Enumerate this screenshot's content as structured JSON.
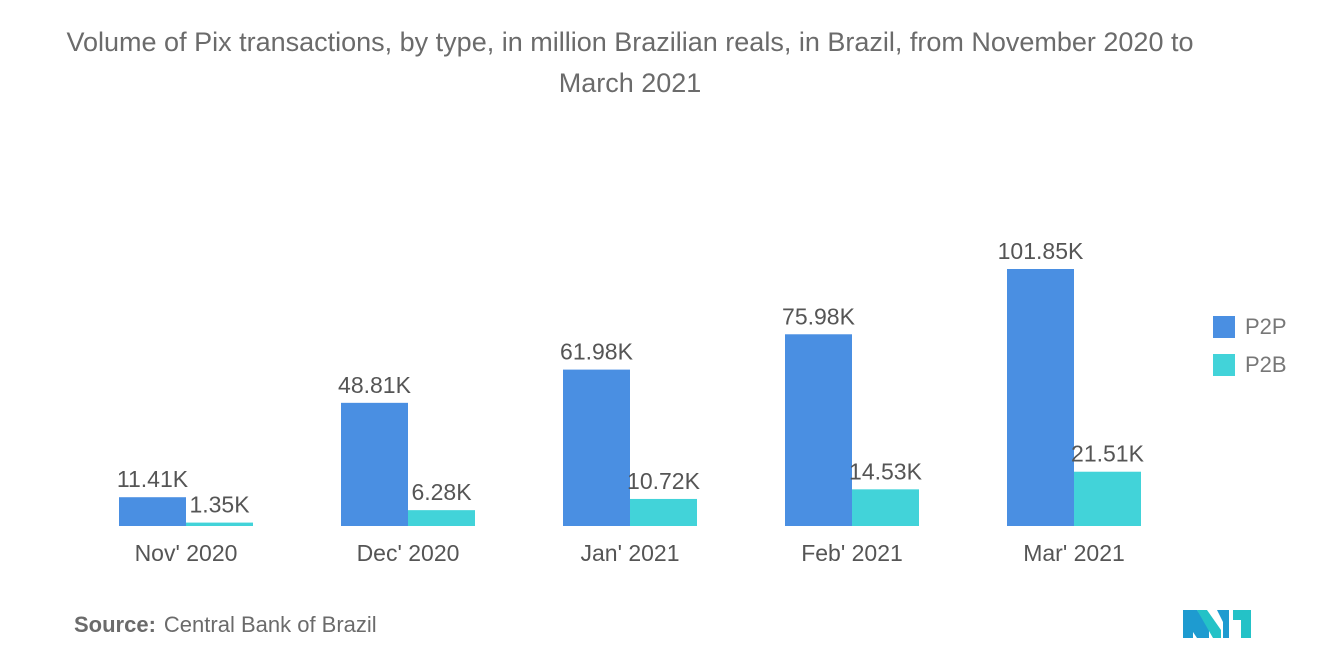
{
  "title": "Volume of Pix transactions, by type, in million Brazilian reals, in Brazil, from November 2020 to March 2021",
  "colors": {
    "P2P": "#4a8fe2",
    "P2B": "#42d3d9",
    "text": "#555555"
  },
  "chart_data": {
    "type": "bar",
    "categories": [
      "Nov' 2020",
      "Dec' 2020",
      "Jan' 2021",
      "Feb' 2021",
      "Mar' 2021"
    ],
    "series": [
      {
        "name": "P2P",
        "values": [
          11.41,
          48.81,
          61.98,
          75.98,
          101.85
        ],
        "labels": [
          "11.41K",
          "48.81K",
          "61.98K",
          "75.98K",
          "101.85K"
        ]
      },
      {
        "name": "P2B",
        "values": [
          1.35,
          6.28,
          10.72,
          14.53,
          21.51
        ],
        "labels": [
          "1.35K",
          "6.28K",
          "10.72K",
          "14.53K",
          "21.51K"
        ]
      }
    ],
    "ylim": [
      0,
      101.85
    ],
    "grid": false,
    "legend_position": "right"
  },
  "legend": {
    "items": [
      {
        "label": "P2P"
      },
      {
        "label": "P2B"
      }
    ]
  },
  "source": {
    "key": "Source:",
    "text": "Central Bank of Brazil"
  },
  "logo": {
    "icon": "mordor-intelligence-logo"
  }
}
